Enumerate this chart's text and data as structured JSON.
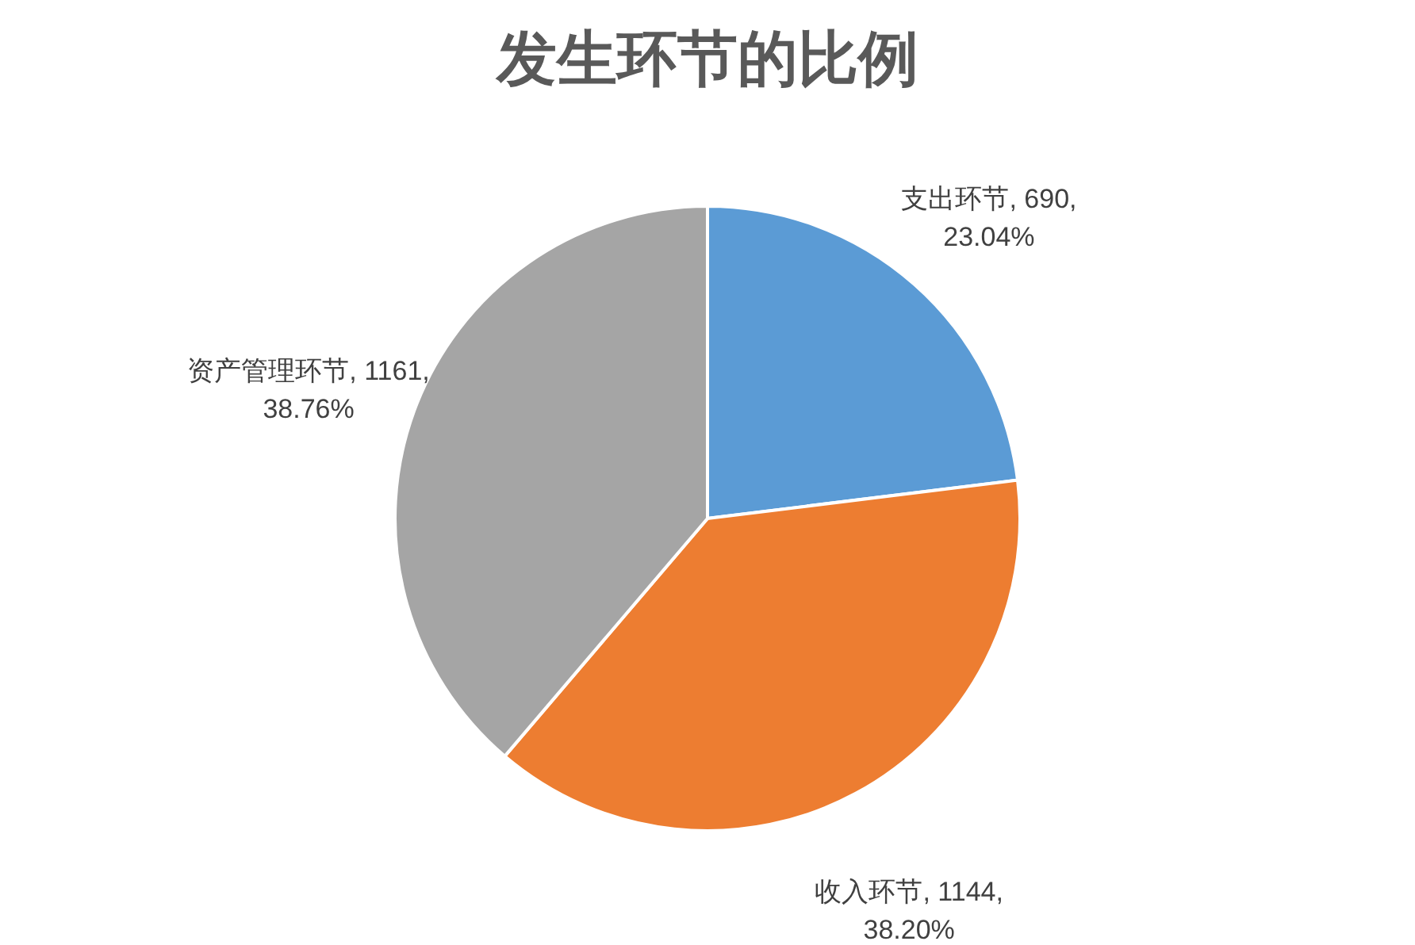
{
  "chart_data": {
    "type": "pie",
    "title": "发生环节的比例",
    "categories": [
      "支出环节",
      "收入环节",
      "资产管理环节"
    ],
    "values": [
      690,
      1144,
      1161
    ],
    "value_labels": [
      "690, 23.04%",
      "1144, 38.20%",
      "1161, 38.76%"
    ],
    "colors": [
      "#5b9bd5",
      "#ed7d31",
      "#a5a5a5"
    ],
    "legend": false
  }
}
